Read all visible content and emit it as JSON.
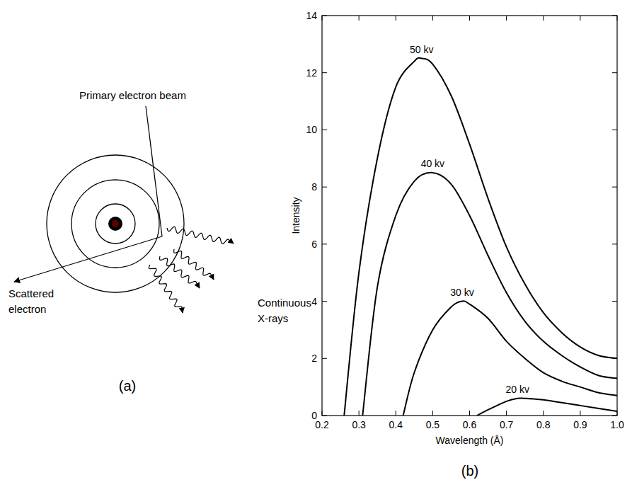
{
  "chart_data": {
    "type": "line",
    "x_label": "Wavelength (Å)",
    "y_label": "Intensity",
    "xlim": [
      0.2,
      1.0
    ],
    "ylim": [
      0,
      14
    ],
    "xticks": [
      0.2,
      0.3,
      0.4,
      0.5,
      0.6,
      0.7,
      0.8,
      0.9,
      {
        "value": 1.0,
        "label": "1.0"
      }
    ],
    "yticks": [
      0,
      2,
      4,
      6,
      8,
      10,
      12,
      14
    ],
    "grid": false,
    "color": "#000000",
    "series": [
      {
        "name": "50 kv",
        "color": "#000000",
        "x": [
          0.26,
          0.3,
          0.35,
          0.4,
          0.45,
          0.47,
          0.5,
          0.55,
          0.6,
          0.65,
          0.7,
          0.75,
          0.8,
          0.85,
          0.9,
          0.95,
          1.0
        ],
        "values": [
          0,
          5.0,
          9.0,
          11.5,
          12.4,
          12.5,
          12.3,
          11.2,
          9.5,
          7.6,
          5.9,
          4.6,
          3.6,
          2.9,
          2.4,
          2.1,
          2.0
        ]
      },
      {
        "name": "40 kv",
        "color": "#000000",
        "x": [
          0.31,
          0.35,
          0.4,
          0.45,
          0.5,
          0.55,
          0.6,
          0.65,
          0.7,
          0.75,
          0.8,
          0.85,
          0.9,
          0.95,
          1.0
        ],
        "values": [
          0,
          4.5,
          7.0,
          8.2,
          8.5,
          8.1,
          7.0,
          5.6,
          4.3,
          3.3,
          2.6,
          2.1,
          1.7,
          1.4,
          1.3
        ]
      },
      {
        "name": "30 kv",
        "color": "#000000",
        "x": [
          0.42,
          0.45,
          0.5,
          0.55,
          0.58,
          0.6,
          0.65,
          0.7,
          0.75,
          0.8,
          0.85,
          0.9,
          0.95,
          1.0
        ],
        "values": [
          0,
          1.5,
          3.0,
          3.8,
          4.0,
          3.9,
          3.4,
          2.6,
          2.0,
          1.5,
          1.2,
          1.0,
          0.8,
          0.7
        ]
      },
      {
        "name": "20 kv",
        "color": "#000000",
        "x": [
          0.62,
          0.65,
          0.7,
          0.73,
          0.75,
          0.8,
          0.85,
          0.9,
          0.95,
          1.0
        ],
        "values": [
          0,
          0.2,
          0.5,
          0.6,
          0.6,
          0.55,
          0.45,
          0.35,
          0.25,
          0.15
        ]
      }
    ]
  },
  "diagram": {
    "labels": [
      {
        "lines": [
          "Primary electron beam"
        ]
      },
      {
        "lines": [
          "Scattered",
          "electron"
        ]
      },
      {
        "lines": [
          "Continuous",
          "X-rays"
        ]
      }
    ]
  },
  "panels": {
    "a": "(a)",
    "b": "(b)"
  }
}
